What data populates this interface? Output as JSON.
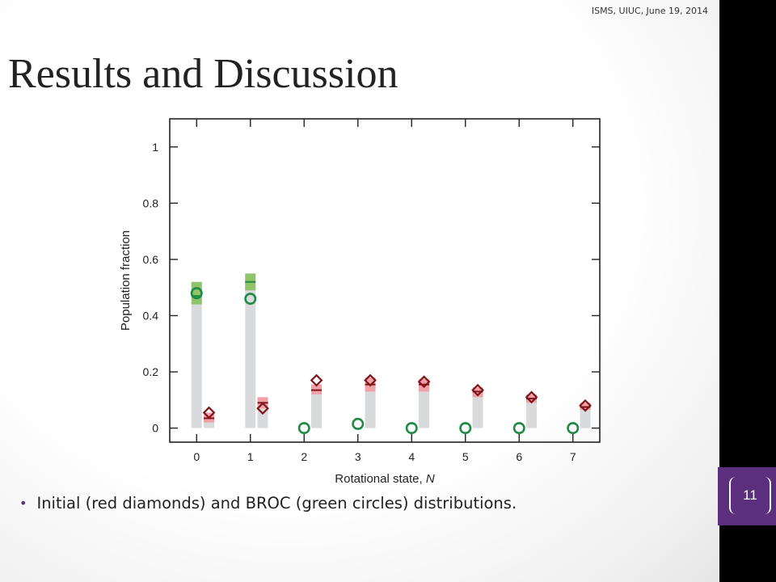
{
  "header": {
    "note": "ISMS, UIUC, June 19, 2014"
  },
  "slide": {
    "title": "Results and Discussion",
    "number": "11"
  },
  "bullets": [
    {
      "text": "Initial (red diamonds) and BROC (green circles) distributions."
    }
  ],
  "chart_data": {
    "type": "scatter",
    "xlabel": "Rotational state, N",
    "ylabel": "Population fraction",
    "xlim": [
      -0.5,
      7.5
    ],
    "ylim": [
      -0.05,
      1.1
    ],
    "x_ticks": [
      0,
      1,
      2,
      3,
      4,
      5,
      6,
      7
    ],
    "y_ticks": [
      0,
      0.2,
      0.4,
      0.6,
      0.8,
      1
    ],
    "y_tick_labels": [
      "0",
      "0.2",
      "0.4",
      "0.6",
      "0.8",
      "1"
    ],
    "grid": false,
    "colors": {
      "green": "#1e8a45",
      "green_band": "#8fc46a",
      "red": "#7e1518",
      "red_band": "#f2a0a8",
      "gray_bar": "#d9dadc"
    },
    "series": [
      {
        "marker": "circle",
        "color": "#1e8a45",
        "points": [
          {
            "x": 0,
            "y": 0.48
          },
          {
            "x": 1,
            "y": 0.46
          },
          {
            "x": 2,
            "y": 0.0
          },
          {
            "x": 3,
            "y": 0.015
          },
          {
            "x": 4,
            "y": 0.0
          },
          {
            "x": 5,
            "y": 0.0
          },
          {
            "x": 6,
            "y": 0.0
          },
          {
            "x": 7,
            "y": 0.0
          }
        ]
      },
      {
        "marker": "diamond",
        "color": "#7e1518",
        "points": [
          {
            "x": 0,
            "y": 0.055
          },
          {
            "x": 1,
            "y": 0.07
          },
          {
            "x": 2,
            "y": 0.17
          },
          {
            "x": 3,
            "y": 0.17
          },
          {
            "x": 4,
            "y": 0.165
          },
          {
            "x": 5,
            "y": 0.135
          },
          {
            "x": 6,
            "y": 0.11
          },
          {
            "x": 7,
            "y": 0.08
          }
        ]
      }
    ],
    "bars": [
      {
        "x": 0,
        "value": 0.48,
        "band": [
          0.44,
          0.52
        ],
        "line": 0.47,
        "color": "green"
      },
      {
        "x": 0,
        "value": 0.055,
        "band": [
          0.02,
          0.055
        ],
        "line": 0.035,
        "color": "red"
      },
      {
        "x": 1,
        "value": 0.52,
        "band": [
          0.49,
          0.55
        ],
        "line": 0.52,
        "color": "green"
      },
      {
        "x": 1,
        "value": 0.1,
        "band": [
          0.07,
          0.11
        ],
        "line": 0.09,
        "color": "red"
      },
      {
        "x": 2,
        "value": 0.15,
        "band": [
          0.12,
          0.155
        ],
        "line": 0.135,
        "color": "red"
      },
      {
        "x": 3,
        "value": 0.165,
        "band": [
          0.13,
          0.18
        ],
        "line": 0.155,
        "color": "red"
      },
      {
        "x": 4,
        "value": 0.16,
        "band": [
          0.13,
          0.175
        ],
        "line": 0.155,
        "color": "red"
      },
      {
        "x": 5,
        "value": 0.135,
        "band": [
          0.11,
          0.145
        ],
        "line": 0.13,
        "color": "red"
      },
      {
        "x": 6,
        "value": 0.11,
        "band": [
          0.09,
          0.12
        ],
        "line": 0.105,
        "color": "red"
      },
      {
        "x": 7,
        "value": 0.08,
        "band": [
          0.065,
          0.09
        ],
        "line": 0.075,
        "color": "red"
      }
    ]
  }
}
